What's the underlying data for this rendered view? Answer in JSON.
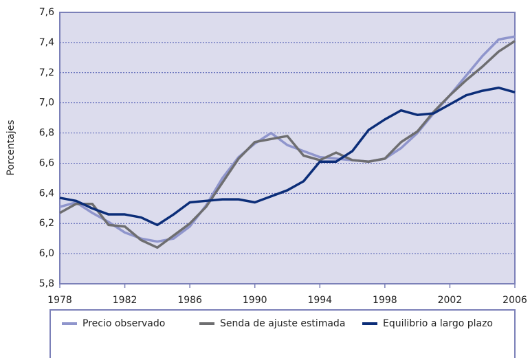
{
  "chart_data": {
    "type": "line",
    "y_label": "Porcentajes",
    "x": [
      1978,
      1979,
      1980,
      1981,
      1982,
      1983,
      1984,
      1985,
      1986,
      1987,
      1988,
      1989,
      1990,
      1991,
      1992,
      1993,
      1994,
      1995,
      1996,
      1997,
      1998,
      1999,
      2000,
      2001,
      2002,
      2003,
      2004,
      2005,
      2006
    ],
    "series": [
      {
        "name": "Precio observado",
        "color": "#8f95cc",
        "values": [
          6.31,
          6.34,
          6.27,
          6.21,
          6.14,
          6.1,
          6.08,
          6.1,
          6.18,
          6.32,
          6.5,
          6.64,
          6.73,
          6.8,
          6.72,
          6.68,
          6.64,
          6.63,
          6.62,
          6.61,
          6.63,
          6.7,
          6.8,
          6.93,
          7.05,
          7.18,
          7.31,
          7.42,
          7.44
        ]
      },
      {
        "name": "Senda de ajuste estimada",
        "color": "#6e6e70",
        "values": [
          6.27,
          6.33,
          6.33,
          6.19,
          6.18,
          6.09,
          6.04,
          6.12,
          6.2,
          6.31,
          6.47,
          6.63,
          6.74,
          6.76,
          6.78,
          6.65,
          6.62,
          6.67,
          6.62,
          6.61,
          6.63,
          6.74,
          6.81,
          6.94,
          7.05,
          7.15,
          7.24,
          7.34,
          7.41
        ]
      },
      {
        "name": "Equilibrio a largo plazo",
        "color": "#0b2d78",
        "values": [
          6.37,
          6.35,
          6.3,
          6.26,
          6.26,
          6.24,
          6.19,
          6.26,
          6.34,
          6.35,
          6.36,
          6.36,
          6.34,
          6.38,
          6.42,
          6.48,
          6.61,
          6.61,
          6.68,
          6.82,
          6.89,
          6.95,
          6.92,
          6.93,
          6.99,
          7.05,
          7.08,
          7.1,
          7.07
        ]
      }
    ],
    "xlim": [
      1978,
      2006
    ],
    "xticks": [
      1978,
      1982,
      1986,
      1990,
      1994,
      1998,
      2002,
      2006
    ],
    "ylim": [
      5.8,
      7.6
    ],
    "yticks": [
      {
        "value": 5.8,
        "label": "5,8"
      },
      {
        "value": 6.0,
        "label": "6,0"
      },
      {
        "value": 6.2,
        "label": "6,2"
      },
      {
        "value": 6.4,
        "label": "6,4"
      },
      {
        "value": 6.6,
        "label": "6,6"
      },
      {
        "value": 6.8,
        "label": "6,8"
      },
      {
        "value": 7.0,
        "label": "7,0"
      },
      {
        "value": 7.2,
        "label": "7,2"
      },
      {
        "value": 7.4,
        "label": "7,4"
      },
      {
        "value": 7.6,
        "label": "7,6"
      }
    ],
    "grid": true,
    "legend_position": "bottom"
  }
}
